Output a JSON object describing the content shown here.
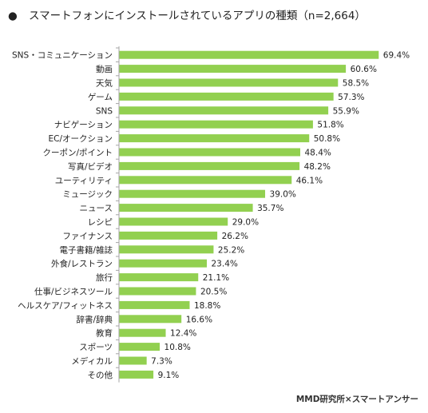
{
  "title_bullet": "●",
  "title": "スマートフォンにインストールされているアプリの種類（n=2,664）",
  "credit": "MMD研究所×スマートアンサー",
  "colors": {
    "bar": "#92d050",
    "axis": "#a6a6a6",
    "text": "#222222"
  },
  "chart_data": {
    "type": "bar",
    "orientation": "horizontal",
    "title": "スマートフォンにインストールされているアプリの種類（n=2,664）",
    "value_suffix": "%",
    "xlim": [
      0,
      80
    ],
    "grid": false,
    "legend": "none",
    "categories": [
      "SNS・コミュニケーション",
      "動画",
      "天気",
      "ゲーム",
      "SNS",
      "ナビゲーション",
      "EC/オークション",
      "クーポン/ポイント",
      "写真/ビデオ",
      "ユーティリティ",
      "ミュージック",
      "ニュース",
      "レシピ",
      "ファイナンス",
      "電子書籍/雑誌",
      "外食/レストラン",
      "旅行",
      "仕事/ビジネスツール",
      "ヘルスケア/フィットネス",
      "辞書/辞典",
      "教育",
      "スポーツ",
      "メディカル",
      "その他"
    ],
    "values": [
      69.4,
      60.6,
      58.5,
      57.3,
      55.9,
      51.8,
      50.8,
      48.4,
      48.2,
      46.1,
      39.0,
      35.7,
      29.0,
      26.2,
      25.2,
      23.4,
      21.1,
      20.5,
      18.8,
      16.6,
      12.4,
      10.8,
      7.3,
      9.1
    ],
    "value_labels": [
      "69.4%",
      "60.6%",
      "58.5%",
      "57.3%",
      "55.9%",
      "51.8%",
      "50.8%",
      "48.4%",
      "48.2%",
      "46.1%",
      "39.0%",
      "35.7%",
      "29.0%",
      "26.2%",
      "25.2%",
      "23.4%",
      "21.1%",
      "20.5%",
      "18.8%",
      "16.6%",
      "12.4%",
      "10.8%",
      "7.3%",
      "9.1%"
    ]
  }
}
